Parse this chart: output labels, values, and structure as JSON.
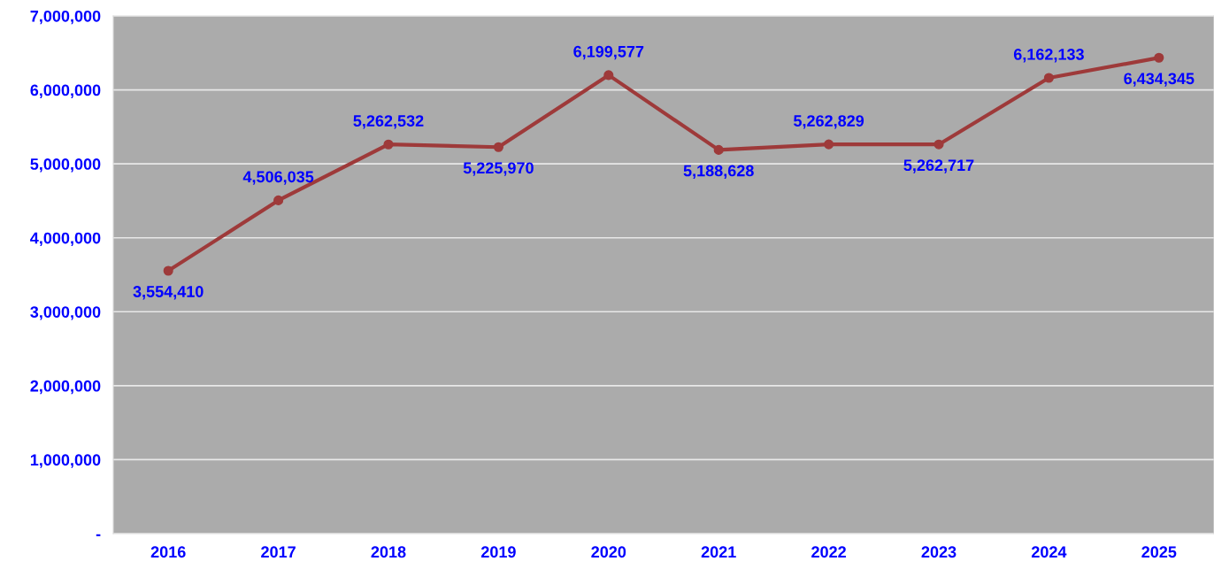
{
  "chart_data": {
    "type": "line",
    "categories": [
      "2016",
      "2017",
      "2018",
      "2019",
      "2020",
      "2021",
      "2022",
      "2023",
      "2024",
      "2025"
    ],
    "series": [
      {
        "color": "#9e3a3a",
        "values": [
          3554410,
          4506035,
          5262532,
          5225970,
          6199577,
          5188628,
          5262829,
          5262717,
          6162133,
          6434345
        ],
        "value_labels": [
          "3,554,410",
          "4,506,035",
          "5,262,532",
          "5,225,970",
          "6,199,577",
          "5,188,628",
          "5,262,829",
          "5,262,717",
          "6,162,133",
          "6,434,345"
        ]
      }
    ],
    "ylim": [
      0,
      7000000
    ],
    "yticks": [
      {
        "value": 0,
        "label": "-"
      },
      {
        "value": 1000000,
        "label": "1,000,000"
      },
      {
        "value": 2000000,
        "label": "2,000,000"
      },
      {
        "value": 3000000,
        "label": "3,000,000"
      },
      {
        "value": 4000000,
        "label": "4,000,000"
      },
      {
        "value": 5000000,
        "label": "5,000,000"
      },
      {
        "value": 6000000,
        "label": "6,000,000"
      },
      {
        "value": 7000000,
        "label": "7,000,000"
      }
    ],
    "grid": "y",
    "marker": "circle",
    "line_style": "solid"
  }
}
